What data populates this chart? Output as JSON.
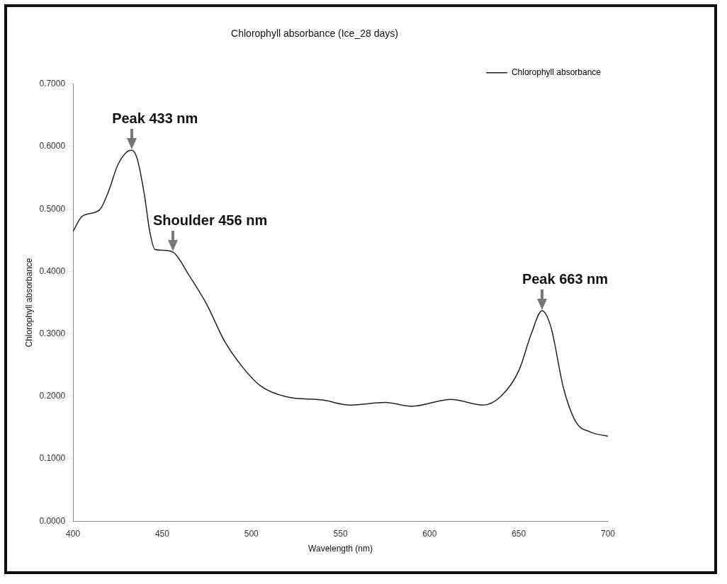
{
  "chart_data": {
    "type": "line",
    "title": "Chlorophyll absorbance (Ice_28 days)",
    "xlabel": "Wavelength (nm)",
    "ylabel": "Chlorophyll absorbance",
    "xlim": [
      400,
      700
    ],
    "xticks": [
      400,
      450,
      500,
      550,
      600,
      650,
      700
    ],
    "ylim": [
      0,
      0.7
    ],
    "yticks": [
      {
        "value": 0,
        "label": "0.0000"
      },
      {
        "value": 0.1,
        "label": "0.1000"
      },
      {
        "value": 0.2,
        "label": "0.2000"
      },
      {
        "value": 0.3,
        "label": "0.3000"
      },
      {
        "value": 0.4,
        "label": "0.4000"
      },
      {
        "value": 0.5,
        "label": "0.5000"
      },
      {
        "value": 0.6,
        "label": "0.6000"
      },
      {
        "value": 0.7,
        "label": "0.7000"
      }
    ],
    "grid": false,
    "legend": "top right",
    "marker": "none",
    "line_style": "solid",
    "series": [
      {
        "name": "Chlorophyll absorbance",
        "color": "#222222",
        "x": [
          400,
          405,
          415,
          420,
          425,
          430,
          433,
          436,
          440,
          443,
          446,
          450,
          456,
          465,
          475,
          485,
          495,
          505,
          520,
          540,
          555,
          575,
          590,
          612,
          630,
          640,
          650,
          657,
          663,
          668,
          675,
          682,
          690,
          700
        ],
        "values": [
          0.464,
          0.488,
          0.499,
          0.529,
          0.57,
          0.591,
          0.594,
          0.58,
          0.523,
          0.464,
          0.435,
          0.434,
          0.431,
          0.394,
          0.347,
          0.288,
          0.247,
          0.217,
          0.199,
          0.194,
          0.186,
          0.19,
          0.184,
          0.195,
          0.186,
          0.2,
          0.241,
          0.3,
          0.337,
          0.311,
          0.214,
          0.159,
          0.143,
          0.136
        ]
      }
    ],
    "annotations": [
      {
        "text": "Peak 433 nm",
        "x": 433,
        "y": 0.594
      },
      {
        "text": "Shoulder 456 nm",
        "x": 456,
        "y": 0.431
      },
      {
        "text": "Peak 663 nm",
        "x": 663,
        "y": 0.337
      }
    ]
  }
}
